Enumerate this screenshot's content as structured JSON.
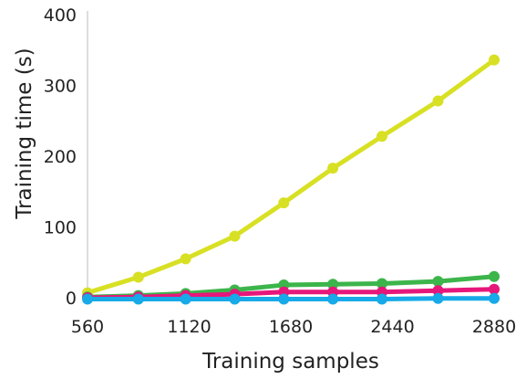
{
  "chart_data": {
    "type": "line",
    "title": "",
    "xlabel": "Training samples",
    "ylabel": "Training time (s)",
    "x": [
      560,
      850,
      1120,
      1400,
      1680,
      1960,
      2240,
      2560,
      2880
    ],
    "x_tick_labels": [
      "560",
      "1120",
      "1680",
      "2440",
      "2880"
    ],
    "y_ticks": [
      0,
      100,
      200,
      300,
      400
    ],
    "xlim": [
      560,
      2880
    ],
    "ylim": [
      0,
      400
    ],
    "grid": false,
    "legend": "none",
    "series": [
      {
        "color": "#d8e024",
        "values": [
          7,
          29,
          55,
          87,
          134,
          183,
          228,
          278,
          336
        ]
      },
      {
        "color": "#3cb54a",
        "values": [
          1,
          3,
          6,
          11,
          18,
          19,
          20,
          23,
          30
        ]
      },
      {
        "color": "#e6177a",
        "values": [
          0,
          1,
          3,
          5,
          8,
          8,
          8,
          10,
          12
        ]
      },
      {
        "color": "#17a9e8",
        "values": [
          -2,
          -2,
          -2,
          -2,
          -2,
          -2,
          -2,
          -1,
          -1
        ]
      }
    ]
  }
}
